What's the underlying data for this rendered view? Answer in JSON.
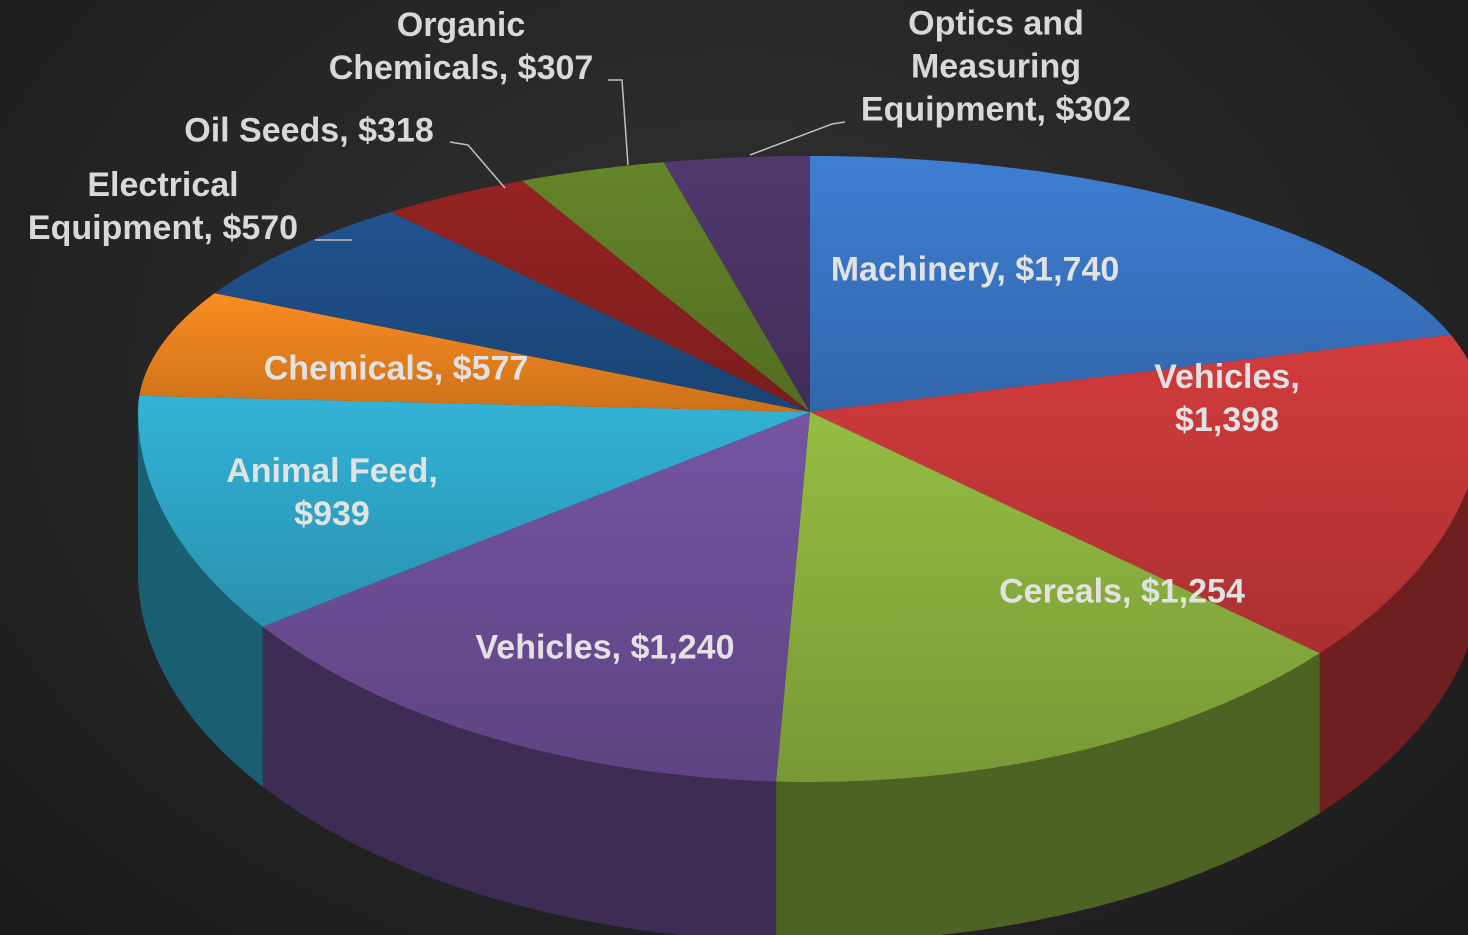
{
  "chart_data": {
    "type": "pie",
    "three_d": true,
    "values": [
      1740,
      1398,
      1254,
      1240,
      939,
      577,
      570,
      318,
      307,
      302
    ],
    "value_labels": [
      "Machinery, $1,740",
      "Vehicles, $1,398",
      "Cereals, $1,254",
      "Vehicles, $1,240",
      "Animal Feed,\n$939",
      "Chemicals, $577",
      "Electrical\nEquipment, $570",
      "Oil Seeds, $318",
      "Organic\nChemicals, $307",
      "Optics and\nMeasuring\nEquipment, $302"
    ],
    "colors": [
      "#3b78c9",
      "#c9393a",
      "#8db43f",
      "#6f5099",
      "#30aacd",
      "#f0851f",
      "#1f4f87",
      "#8f2121",
      "#607f27",
      "#4d3569"
    ]
  }
}
